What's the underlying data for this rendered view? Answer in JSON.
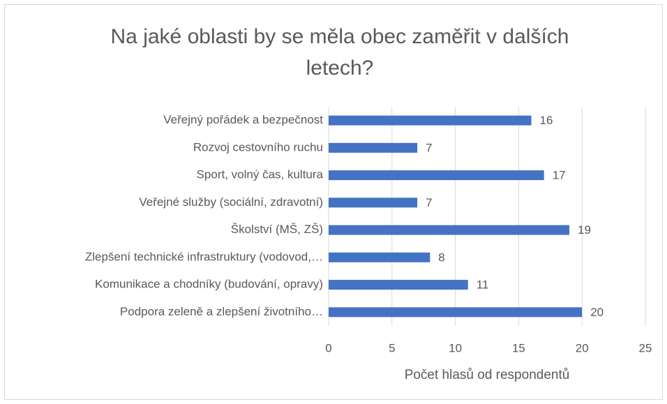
{
  "chart_data": {
    "type": "bar",
    "orientation": "horizontal",
    "title": "Na jaké oblasti by se měla obec zaměřit v dalších letech?",
    "x_label": "Počet hlasů od respondentů",
    "categories": [
      "Veřejný pořádek a bezpečnost",
      "Rozvoj cestovního ruchu",
      "Sport, volný čas, kultura",
      "Veřejné služby (sociální, zdravotní)",
      "Školství (MŠ, ZŠ)",
      "Zlepšení technické infrastruktury (vodovod,…",
      "Komunikace a chodníky (budování, opravy)",
      "Podpora zeleně a zlepšení životního…"
    ],
    "values": [
      16,
      7,
      17,
      7,
      19,
      8,
      11,
      20
    ],
    "color": "#4472c4",
    "xlim": [
      0,
      25
    ],
    "xticks": [
      0,
      5,
      10,
      15,
      20,
      25
    ],
    "grid": true
  }
}
